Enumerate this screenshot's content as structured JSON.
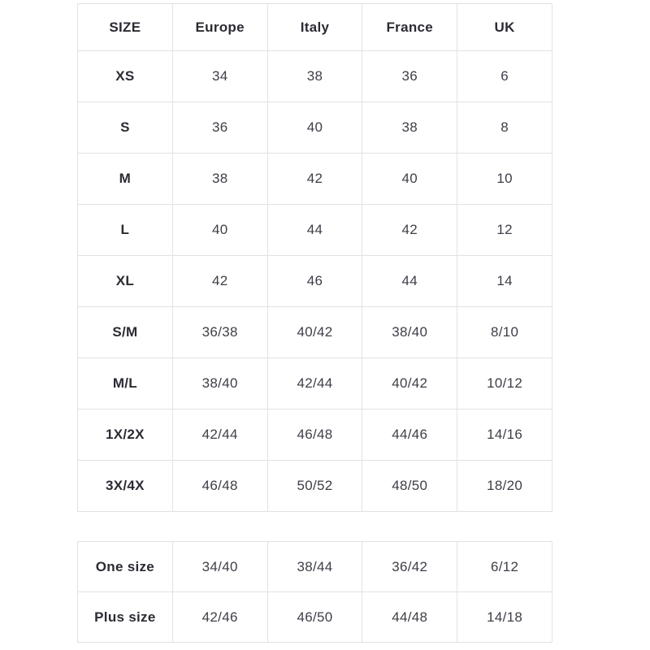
{
  "colors": {
    "background": "#ffffff",
    "border": "#e2e2e2",
    "heading_text": "#2b2b34",
    "value_text": "#3e3e48"
  },
  "chart_data": [
    {
      "type": "table",
      "title": "",
      "columns": [
        "SIZE",
        "Europe",
        "Italy",
        "France",
        "UK"
      ],
      "rows": [
        [
          "XS",
          "34",
          "38",
          "36",
          "6"
        ],
        [
          "S",
          "36",
          "40",
          "38",
          "8"
        ],
        [
          "M",
          "38",
          "42",
          "40",
          "10"
        ],
        [
          "L",
          "40",
          "44",
          "42",
          "12"
        ],
        [
          "XL",
          "42",
          "46",
          "44",
          "14"
        ],
        [
          "S/M",
          "36/38",
          "40/42",
          "38/40",
          "8/10"
        ],
        [
          "M/L",
          "38/40",
          "42/44",
          "40/42",
          "10/12"
        ],
        [
          "1X/2X",
          "42/44",
          "46/48",
          "44/46",
          "14/16"
        ],
        [
          "3X/4X",
          "46/48",
          "50/52",
          "48/50",
          "18/20"
        ]
      ]
    },
    {
      "type": "table",
      "title": "",
      "rows": [
        [
          "One size",
          "34/40",
          "38/44",
          "36/42",
          "6/12"
        ],
        [
          "Plus size",
          "42/46",
          "46/50",
          "44/48",
          "14/18"
        ]
      ]
    }
  ]
}
